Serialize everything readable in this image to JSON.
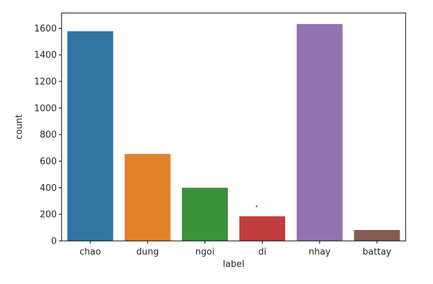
{
  "chart_data": {
    "type": "bar",
    "categories": [
      "chao",
      "dung",
      "ngoi",
      "di",
      "nhay",
      "battay"
    ],
    "values": [
      1578,
      655,
      400,
      185,
      1632,
      82
    ],
    "colors": [
      "#3274a1",
      "#e1812c",
      "#3a923a",
      "#c03d3e",
      "#9372b2",
      "#845b53"
    ],
    "xlabel": "label",
    "ylabel": "count",
    "yticks": [
      0,
      200,
      400,
      600,
      800,
      1000,
      1200,
      1400,
      1600
    ],
    "ylim": [
      0,
      1715
    ],
    "grid": false,
    "annotation_dot": {
      "x_category_position": 4.9,
      "y": 260,
      "color": "#ff0000"
    }
  }
}
